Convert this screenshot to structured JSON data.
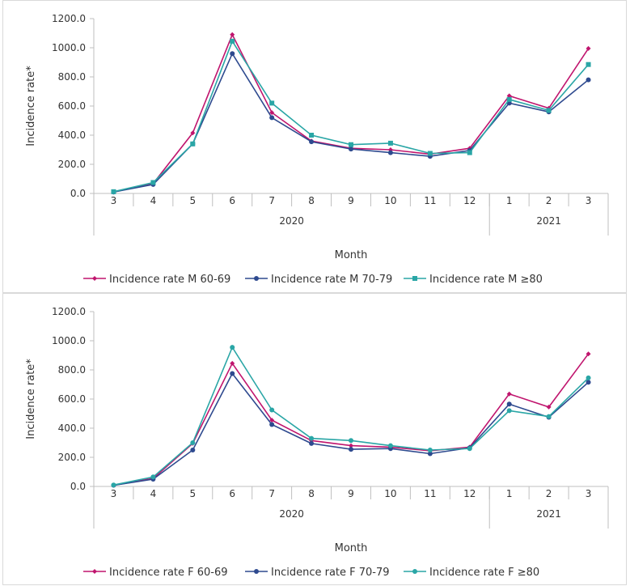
{
  "chart_data": [
    {
      "type": "line",
      "title": "",
      "xlabel": "Month",
      "ylabel": "Incidence rate*",
      "ylim": [
        0,
        1200
      ],
      "yticks": [
        "0.0",
        "200.0",
        "400.0",
        "600.0",
        "800.0",
        "1000.0",
        "1200.0"
      ],
      "categories": [
        "3",
        "4",
        "5",
        "6",
        "7",
        "8",
        "9",
        "10",
        "11",
        "12",
        "1",
        "2",
        "3"
      ],
      "year_groups": [
        {
          "label": "2020",
          "span": 10
        },
        {
          "label": "2021",
          "span": 3
        }
      ],
      "grid": false,
      "legend_position": "bottom",
      "series": [
        {
          "name": "Incidence rate M 60-69",
          "color": "#c0156e",
          "marker": "diamond",
          "values": [
            10,
            68,
            415,
            1090,
            555,
            360,
            310,
            300,
            270,
            310,
            670,
            585,
            995
          ]
        },
        {
          "name": "Incidence rate M 70-79",
          "color": "#2e4a8f",
          "marker": "circle",
          "values": [
            10,
            62,
            340,
            960,
            520,
            355,
            305,
            280,
            255,
            295,
            620,
            560,
            780
          ]
        },
        {
          "name": "Incidence rate M  ≥80",
          "color": "#2aa6a6",
          "marker": "square",
          "values": [
            12,
            75,
            340,
            1045,
            620,
            400,
            335,
            345,
            275,
            280,
            645,
            570,
            885
          ]
        }
      ]
    },
    {
      "type": "line",
      "title": "",
      "xlabel": "Month",
      "ylabel": "Incidence rate*",
      "ylim": [
        0,
        1200
      ],
      "yticks": [
        "0.0",
        "200.0",
        "400.0",
        "600.0",
        "800.0",
        "1000.0",
        "1200.0"
      ],
      "categories": [
        "3",
        "4",
        "5",
        "6",
        "7",
        "8",
        "9",
        "10",
        "11",
        "12",
        "1",
        "2",
        "3"
      ],
      "year_groups": [
        {
          "label": "2020",
          "span": 10
        },
        {
          "label": "2021",
          "span": 3
        }
      ],
      "grid": false,
      "legend_position": "bottom",
      "series": [
        {
          "name": "Incidence rate F 60-69",
          "color": "#c0156e",
          "marker": "diamond",
          "values": [
            8,
            55,
            295,
            845,
            455,
            315,
            280,
            270,
            245,
            270,
            635,
            545,
            910
          ]
        },
        {
          "name": "Incidence rate F 70-79",
          "color": "#2e4a8f",
          "marker": "circle",
          "values": [
            8,
            50,
            250,
            775,
            425,
            295,
            255,
            260,
            225,
            265,
            565,
            475,
            715
          ]
        },
        {
          "name": "Incidence rate F  ≥80",
          "color": "#2aa6a6",
          "marker": "circle",
          "values": [
            10,
            65,
            300,
            955,
            525,
            330,
            315,
            280,
            250,
            260,
            520,
            480,
            745
          ]
        }
      ]
    }
  ]
}
